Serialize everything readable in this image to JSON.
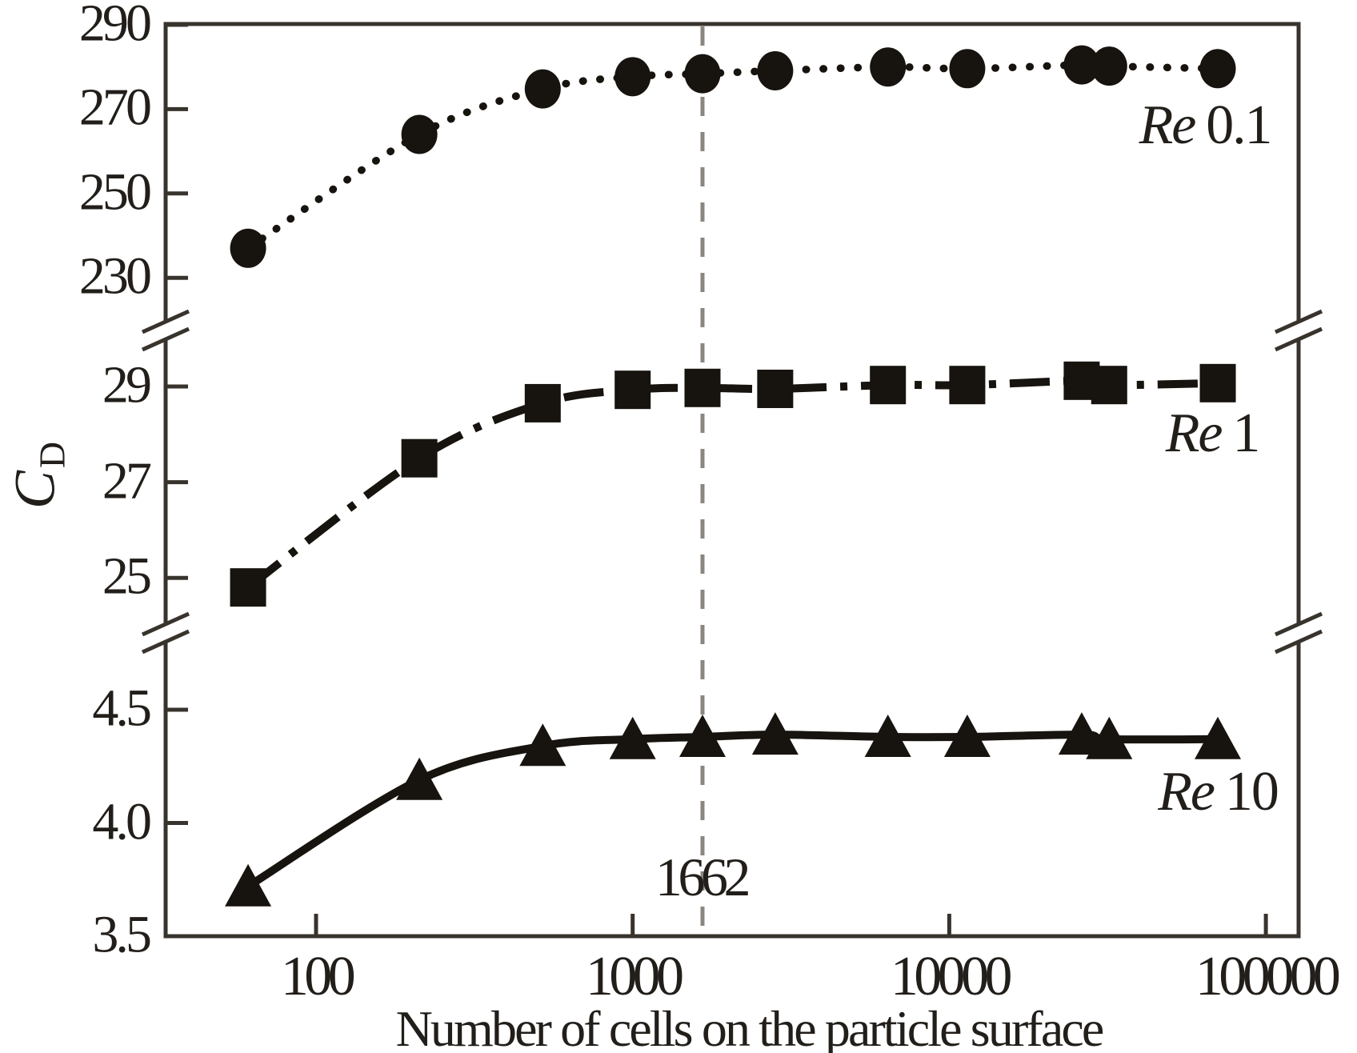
{
  "chart_data": {
    "type": "line",
    "title": "",
    "xlabel": "Number of cells on the particle surface",
    "ylabel": "C_D",
    "ylabel_main": "C",
    "ylabel_sub": "D",
    "x_scale": "log",
    "grid": false,
    "broken_y_axis": true,
    "legend_position": "inline-right",
    "x": [
      61,
      212,
      520,
      1000,
      1662,
      2820,
      6400,
      11400,
      26200,
      32000,
      70500
    ],
    "x_ticks": [
      100,
      1000,
      10000,
      100000
    ],
    "x_tick_labels": [
      "100",
      "1000",
      "10000",
      "100000"
    ],
    "y_segments": [
      {
        "ticks": [
          290,
          270,
          250,
          230
        ],
        "tick_labels": [
          "290",
          "270",
          "250",
          "230"
        ],
        "ylim": [
          221,
          290
        ]
      },
      {
        "ticks": [
          29,
          27,
          25
        ],
        "tick_labels": [
          "29",
          "27",
          "25"
        ],
        "ylim": [
          23.9,
          29.8
        ]
      },
      {
        "ticks": [
          4.5,
          4.0,
          3.5
        ],
        "tick_labels": [
          "4.5",
          "4.0",
          "3.5"
        ],
        "ylim": [
          3.5,
          4.76
        ]
      }
    ],
    "series": [
      {
        "name": "Re 0.1",
        "label_prefix": "Re",
        "label_value": "0.1",
        "marker": "circle",
        "linestyle": "dotted",
        "axis_segment": 0,
        "values": [
          237.0,
          264.0,
          274.8,
          277.7,
          278.4,
          279.1,
          280.0,
          279.6,
          280.5,
          280.2,
          279.6
        ]
      },
      {
        "name": "Re 1",
        "label_prefix": "Re",
        "label_value": "1",
        "marker": "square",
        "linestyle": "dashdot",
        "axis_segment": 1,
        "values": [
          24.8,
          27.5,
          28.65,
          28.93,
          28.97,
          28.95,
          29.03,
          29.03,
          29.12,
          29.03,
          29.07
        ]
      },
      {
        "name": "Re 10",
        "label_prefix": "Re",
        "label_value": "10",
        "marker": "triangle",
        "linestyle": "solid",
        "axis_segment": 2,
        "values": [
          3.72,
          4.19,
          4.34,
          4.37,
          4.38,
          4.39,
          4.38,
          4.38,
          4.39,
          4.37,
          4.37
        ]
      }
    ],
    "vline": {
      "x": 1662,
      "label": "1662",
      "style": "dashed",
      "color": "#8b8680"
    },
    "colors": {
      "background": "#ffffff",
      "axis_ink": "#38332d",
      "text_ink": "#221e1a",
      "series_ink": "#17130e",
      "guide_gray": "#8b8680"
    }
  }
}
